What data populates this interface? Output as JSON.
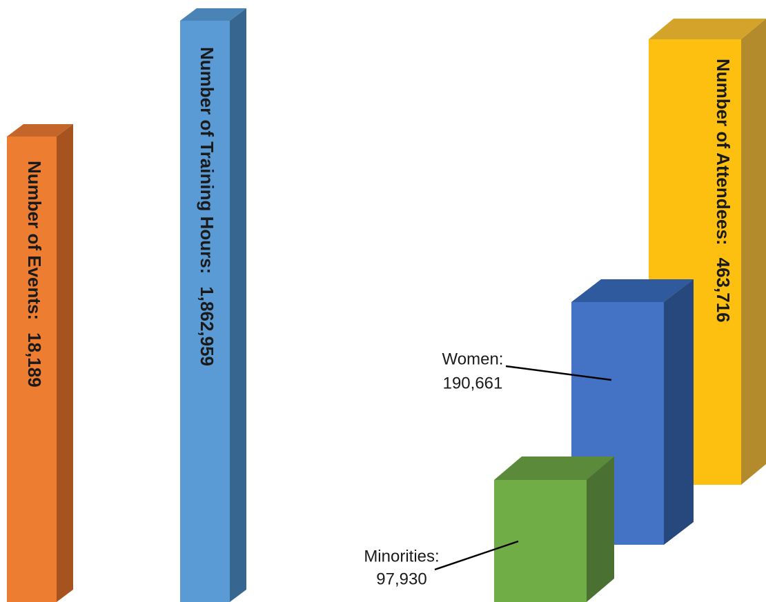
{
  "chart_data": {
    "type": "bar",
    "style": "3d-columns",
    "grid": false,
    "series": [
      {
        "key": "events",
        "label": "Number of Events:",
        "value_text": "18,189",
        "value": 18189,
        "colors": {
          "front": "#ed7d31",
          "top": "#c4652a",
          "side": "#a6531f"
        },
        "label_style": "vertical"
      },
      {
        "key": "hours",
        "label": "Number of Training Hours:",
        "value_text": "1,862,959",
        "value": 1862959,
        "colors": {
          "front": "#5b9bd5",
          "top": "#4a83b6",
          "side": "#376791"
        },
        "label_style": "vertical"
      },
      {
        "key": "attendees",
        "label": "Number of Attendees:",
        "value_text": "463,716",
        "value": 463716,
        "colors": {
          "front": "#fdc010",
          "top": "#d4a32a",
          "side": "#b38b2d"
        },
        "label_style": "vertical"
      },
      {
        "key": "women",
        "label": "Women:",
        "value_text": "190,661",
        "value": 190661,
        "colors": {
          "front": "#4472c4",
          "top": "#2f5a9e",
          "side": "#27487d"
        },
        "label_style": "callout"
      },
      {
        "key": "minorities",
        "label": "Minorities:",
        "value_text": "97,930",
        "value": 97930,
        "colors": {
          "front": "#70ad47",
          "top": "#5b8a3a",
          "side": "#4a7132"
        },
        "label_style": "callout"
      }
    ]
  }
}
